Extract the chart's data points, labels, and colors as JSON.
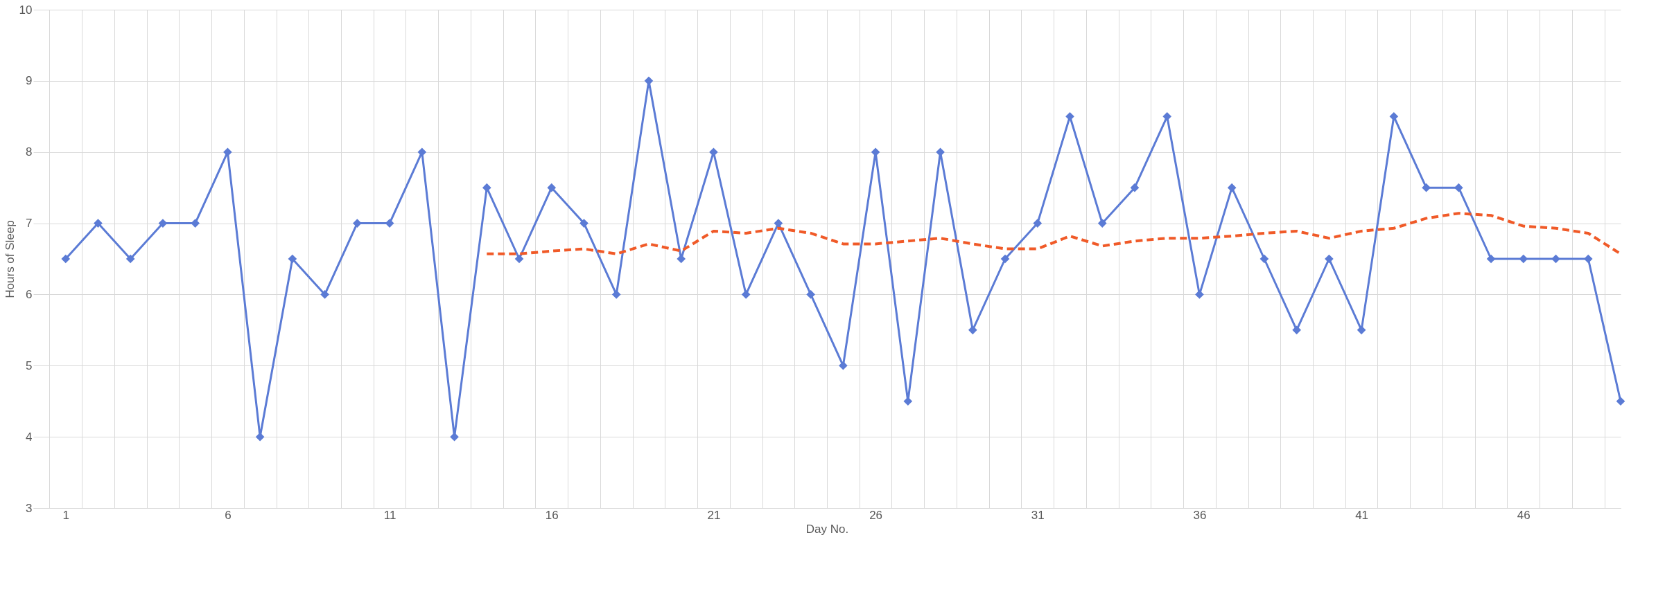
{
  "chart_data": {
    "type": "line",
    "xlabel": "Day No.",
    "ylabel": "Hours of Sleep",
    "categories": [
      "1",
      null,
      null,
      null,
      null,
      "6",
      null,
      null,
      null,
      null,
      "11",
      null,
      null,
      null,
      null,
      "16",
      null,
      null,
      null,
      null,
      "21",
      null,
      null,
      null,
      null,
      "26",
      null,
      null,
      null,
      null,
      "31",
      null,
      null,
      null,
      null,
      "36",
      null,
      null,
      null,
      null,
      "41",
      null,
      null,
      null,
      null,
      "46",
      null,
      null,
      null
    ],
    "series": [
      {
        "color": "#5b7bd5",
        "marker": "diamond",
        "line_style": "solid",
        "values": [
          6.5,
          7,
          6.5,
          7,
          7,
          8,
          4,
          6.5,
          6,
          7,
          7,
          8,
          4,
          7.5,
          6.5,
          7.5,
          7,
          6,
          9,
          6.5,
          8,
          6,
          7,
          6,
          5,
          8,
          4.5,
          8,
          5.5,
          6.5,
          7,
          8.5,
          7,
          7.5,
          8.5,
          6,
          7.5,
          6.5,
          5.5,
          6.5,
          5.5,
          8.5,
          7.5,
          7.5,
          6.5,
          6.5,
          6.5,
          6.5,
          4.5
        ]
      },
      {
        "color": "#f05a28",
        "marker": "none",
        "line_style": "dashed",
        "values": [
          null,
          null,
          null,
          null,
          null,
          null,
          null,
          null,
          null,
          null,
          null,
          null,
          null,
          6.57,
          6.57,
          6.61,
          6.64,
          6.57,
          6.71,
          6.61,
          6.89,
          6.86,
          6.93,
          6.86,
          6.71,
          6.71,
          6.75,
          6.79,
          6.71,
          6.64,
          6.64,
          6.82,
          6.68,
          6.75,
          6.79,
          6.79,
          6.82,
          6.86,
          6.89,
          6.79,
          6.89,
          6.93,
          7.07,
          7.14,
          7.11,
          6.96,
          6.93,
          6.86,
          6.57
        ]
      }
    ],
    "ylim": [
      3,
      10
    ],
    "yticks": [
      3,
      4,
      5,
      6,
      7,
      8,
      9,
      10
    ],
    "grid": true
  }
}
